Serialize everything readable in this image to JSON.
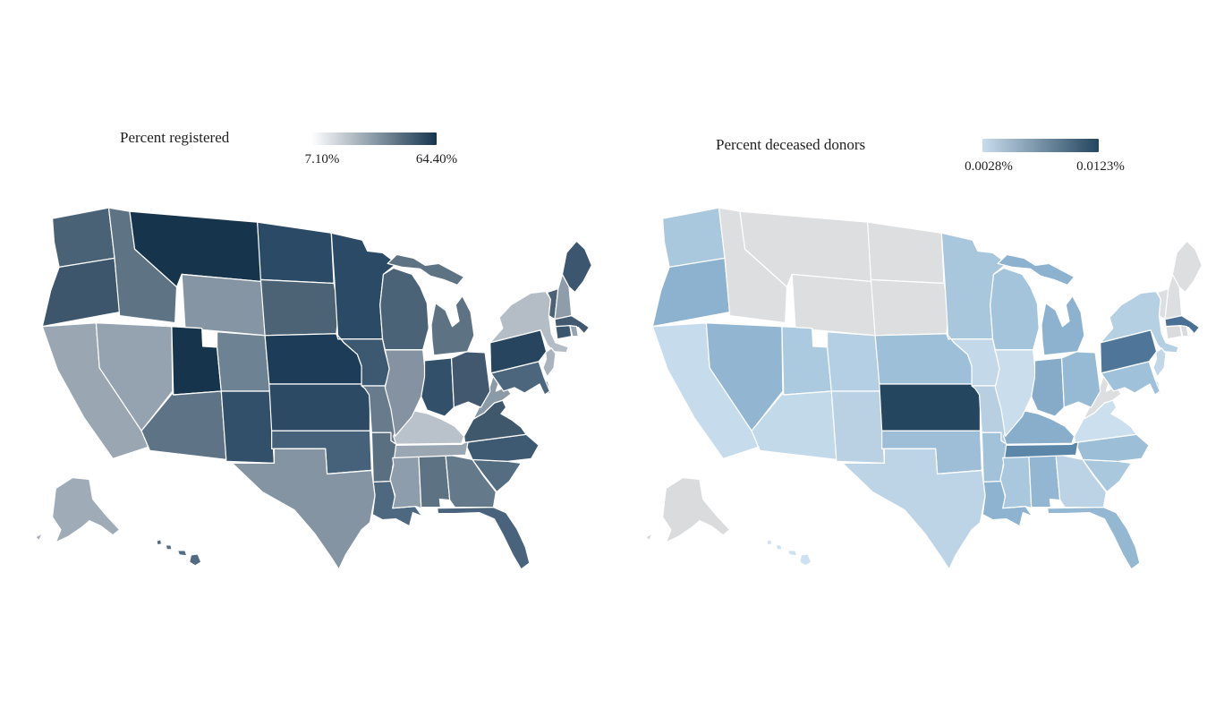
{
  "figure_background": "#ffffff",
  "chart_data": [
    {
      "type": "choropleth",
      "region": "United States (50 states)",
      "title": "Percent registered",
      "legend": {
        "min": "7.10%",
        "max": "64.40%",
        "gradient_start": "#ffffff",
        "gradient_end": "#16354d",
        "position": "top"
      },
      "state_colors": {
        "WA": "#4a6275",
        "OR": "#3d566c",
        "CA": "#9aa7b2",
        "NV": "#95a3b0",
        "ID": "#5e7485",
        "MT": "#16354d",
        "WY": "#8695a3",
        "UT": "#16354d",
        "CO": "#6d8292",
        "AZ": "#5e7486",
        "NM": "#32506a",
        "ND": "#2b4a66",
        "SD": "#4c6275",
        "NE": "#1d3c57",
        "KS": "#2c4a64",
        "OK": "#46627b",
        "TX": "#8494a3",
        "MN": "#2b4a66",
        "IA": "#3d5972",
        "MO": "#687b8c",
        "AR": "#5a7081",
        "LA": "#4e6880",
        "WI": "#4b6377",
        "IL": "#8492a1",
        "IN": "#33506a",
        "MI": "#5d7383",
        "OH": "#42586e",
        "KY": "#b9c2ca",
        "TN": "#9aa7b2",
        "MS": "#8e9dab",
        "AL": "#5d7383",
        "GA": "#647a8b",
        "FL": "#48637b",
        "SC": "#546d80",
        "NC": "#3e5a72",
        "VA": "#40586c",
        "WV": "#8b9aa7",
        "MD": "#4b667d",
        "DE": "#5a7284",
        "NJ": "#a9b3bd",
        "PA": "#27455f",
        "NY": "#b4bdc5",
        "CT": "#3b566e",
        "RI": "#97a5b2",
        "MA": "#42586e",
        "VT": "#4c6175",
        "NH": "#8f9dab",
        "ME": "#3b566e",
        "AK": "#9fabb6",
        "HI": "#536b80"
      }
    },
    {
      "type": "choropleth",
      "region": "United States (50 states)",
      "title": "Percent deceased donors",
      "legend": {
        "min": "0.0028%",
        "max": "0.0123%",
        "gradient_start": "#c8dcec",
        "gradient_end": "#24465f",
        "position": "top"
      },
      "no_data_color": "#dcdedf",
      "no_data_states": [
        "ID",
        "MT",
        "WY",
        "ND",
        "SD",
        "WV",
        "CT",
        "RI",
        "VT",
        "NH",
        "ME",
        "AK"
      ],
      "state_colors": {
        "WA": "#a9c8de",
        "OR": "#8cb2cf",
        "CA": "#c6dcec",
        "NV": "#92b6d1",
        "ID": "#dcdedf",
        "MT": "#dcdedf",
        "WY": "#dcdedf",
        "UT": "#abc9df",
        "CO": "#b4cfe3",
        "AZ": "#c2d9e9",
        "NM": "#bad1e4",
        "ND": "#dcdedf",
        "SD": "#dcdedf",
        "NE": "#9dbfd8",
        "KS": "#24465f",
        "OK": "#9dbed6",
        "TX": "#bdd4e6",
        "MN": "#a9c7dc",
        "IA": "#c3d9e9",
        "MO": "#b7cfe1",
        "AR": "#a1c2d9",
        "LA": "#8db3d0",
        "WI": "#a3c4db",
        "IL": "#c9ddec",
        "IN": "#85abc9",
        "MI": "#8db2cf",
        "OH": "#97bad4",
        "KY": "#88aecb",
        "TN": "#5d87a9",
        "MS": "#a9c7dd",
        "AL": "#93b7d2",
        "GA": "#bbd3e5",
        "FL": "#95b8d2",
        "SC": "#a9c8de",
        "NC": "#9cbfd7",
        "VA": "#cbdfee",
        "WV": "#dcdedf",
        "MD": "#9fc1d9",
        "DE": "#aecbdf",
        "NJ": "#c2d8e8",
        "PA": "#4f7698",
        "NY": "#b5cfe3",
        "CT": "#d9dbdc",
        "RI": "#d9dbdc",
        "MA": "#4a7095",
        "VT": "#dcdedf",
        "NH": "#dcdedf",
        "ME": "#dcdedf",
        "AK": "#d9dbdc",
        "HI": "#cde1f0"
      }
    }
  ]
}
